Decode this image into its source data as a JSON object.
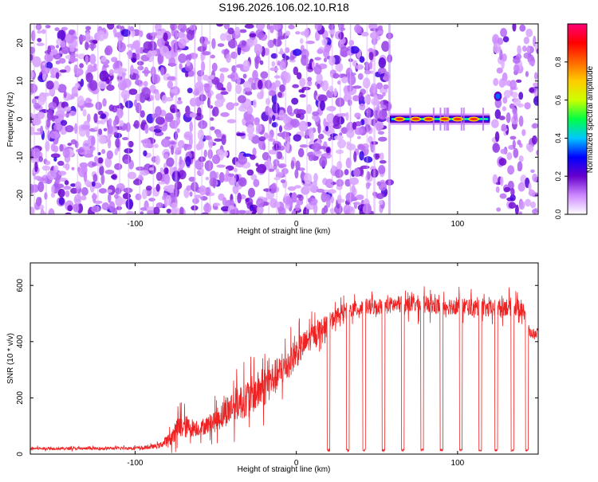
{
  "figure_title": "S196.2026.106.02.10.R18",
  "chart_data": [
    {
      "type": "heatmap",
      "title": "S196.2026.106.02.10.R18",
      "xlabel": "Height of straight line (km)",
      "ylabel": "Frequency (Hz)",
      "xlim": [
        -165,
        150
      ],
      "ylim": [
        -25,
        25
      ],
      "x_ticks": [
        -100,
        0,
        100
      ],
      "x_tick_labels": [
        "-100",
        "0",
        "100"
      ],
      "y_ticks": [
        -20,
        -10,
        0,
        10,
        20
      ],
      "y_tick_labels": [
        "-20",
        "-10",
        "0",
        "10",
        "20"
      ],
      "colorbar": {
        "label": "Normalized spectral amplitude",
        "range": [
          0,
          1
        ],
        "ticks": [
          0.0,
          0.2,
          0.4,
          0.6,
          0.8
        ],
        "tick_labels": [
          "0.0",
          "0.2",
          "0.4",
          "0.6",
          "0.8"
        ],
        "colors": [
          "#ffffff",
          "#cc88ff",
          "#6600cc",
          "#0000ff",
          "#00c8ff",
          "#00ff44",
          "#ccff00",
          "#ffcc00",
          "#ff6600",
          "#ff0000",
          "#ff0077"
        ]
      },
      "noise_region_x": [
        -165,
        58
      ],
      "blank_region_x": [
        58,
        120
      ],
      "tone": {
        "frequency_hz": 0,
        "x_start": 58,
        "x_end": 120,
        "peaks_x": [
          64,
          74,
          82,
          92,
          100,
          110
        ],
        "peak_amplitude": 0.85,
        "base_amplitude": 0.3
      },
      "isolated_peak": {
        "x": 125,
        "frequency_hz": 6,
        "amplitude": 0.35
      },
      "right_noise_region_x": [
        120,
        150
      ]
    },
    {
      "type": "line",
      "title": "",
      "xlabel": "Height of straight line (km)",
      "ylabel": "SNR (10 * v/v)",
      "xlim": [
        -165,
        150
      ],
      "ylim": [
        0,
        680
      ],
      "x_ticks": [
        -100,
        0,
        100
      ],
      "x_tick_labels": [
        "-100",
        "0",
        "100"
      ],
      "y_ticks": [
        0,
        200,
        400,
        600
      ],
      "y_tick_labels": [
        "0",
        "200",
        "400",
        "600"
      ],
      "line_color": "#ee2222",
      "profile": {
        "x": [
          -165,
          -120,
          -95,
          -85,
          -78,
          -72,
          -60,
          -50,
          -40,
          -30,
          -20,
          -10,
          0,
          10,
          20,
          30,
          40,
          50,
          60,
          70,
          80,
          90,
          100,
          110,
          120,
          130,
          140,
          145,
          150
        ],
        "baseline": [
          20,
          20,
          22,
          30,
          55,
          100,
          90,
          120,
          170,
          200,
          240,
          290,
          360,
          420,
          470,
          510,
          520,
          525,
          530,
          535,
          530,
          525,
          530,
          520,
          515,
          525,
          520,
          430,
          430
        ],
        "noise": [
          8,
          8,
          10,
          15,
          40,
          80,
          40,
          70,
          100,
          110,
          120,
          100,
          90,
          70,
          50,
          45,
          50,
          50,
          50,
          55,
          55,
          50,
          55,
          50,
          50,
          55,
          55,
          30,
          30
        ]
      },
      "dropouts_x": [
        20,
        32,
        42,
        54,
        66,
        78,
        90,
        102,
        114,
        124,
        134,
        143
      ],
      "dropout_value": 10
    }
  ]
}
